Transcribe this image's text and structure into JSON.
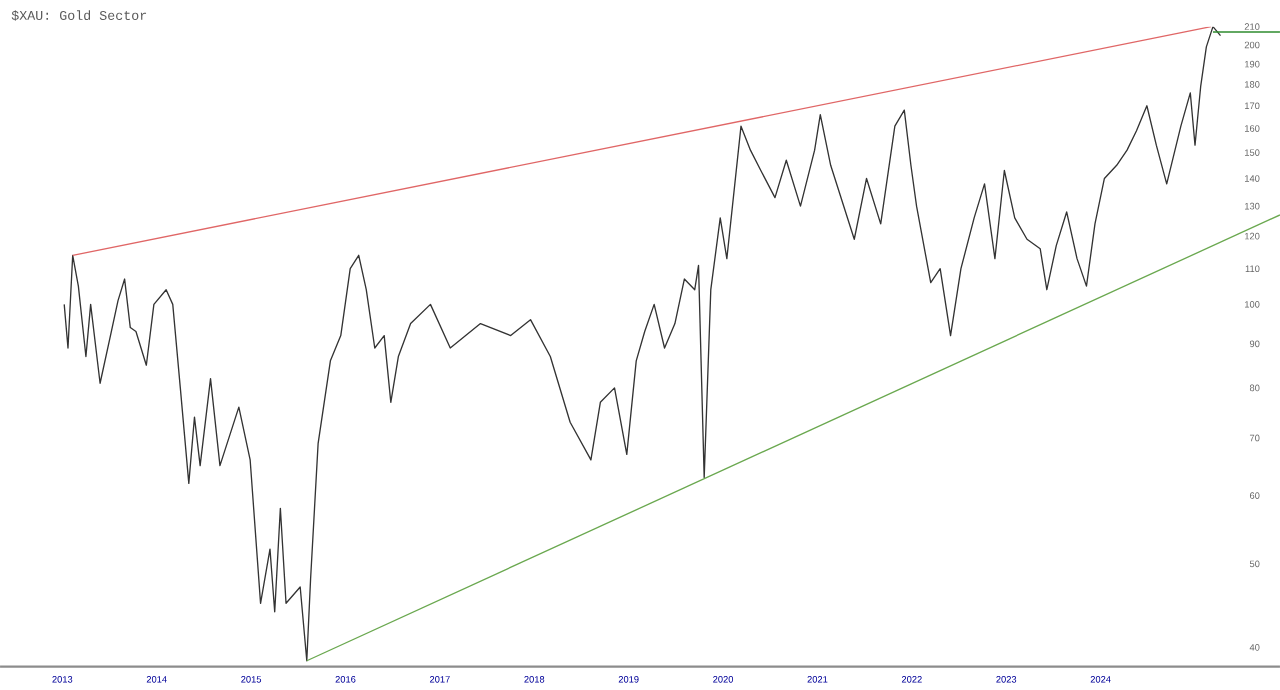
{
  "chart_data": {
    "type": "line",
    "title": "$XAU: Gold Sector",
    "xlim": [
      2012.84,
      2026.4
    ],
    "ylim": [
      38,
      210
    ],
    "log": "y",
    "xticks": [
      {
        "value": 2013.5,
        "label": "2013"
      },
      {
        "value": 2014.5,
        "label": "2014"
      },
      {
        "value": 2015.5,
        "label": "2015"
      },
      {
        "value": 2016.5,
        "label": "2016"
      },
      {
        "value": 2017.5,
        "label": "2017"
      },
      {
        "value": 2018.5,
        "label": "2018"
      },
      {
        "value": 2019.5,
        "label": "2019"
      },
      {
        "value": 2020.5,
        "label": "2020"
      },
      {
        "value": 2021.5,
        "label": "2021"
      },
      {
        "value": 2022.5,
        "label": "2022"
      },
      {
        "value": 2023.5,
        "label": "2023"
      },
      {
        "value": 2024.5,
        "label": "2024"
      }
    ],
    "yticks": [
      40,
      50,
      60,
      70,
      80,
      90,
      100,
      110,
      120,
      130,
      140,
      150,
      160,
      170,
      180,
      190,
      200,
      210
    ],
    "series": [
      {
        "color": "#333333",
        "x": [
          2013.52,
          2013.56,
          2013.61,
          2013.67,
          2013.75,
          2013.8,
          2013.9,
          2014.01,
          2014.09,
          2014.16,
          2014.22,
          2014.28,
          2014.39,
          2014.47,
          2014.6,
          2014.67,
          2014.75,
          2014.84,
          2014.9,
          2014.96,
          2015.07,
          2015.17,
          2015.37,
          2015.49,
          2015.6,
          2015.7,
          2015.75,
          2015.81,
          2015.87,
          2016.02,
          2016.09,
          2016.13,
          2016.21,
          2016.34,
          2016.45,
          2016.55,
          2016.64,
          2016.72,
          2016.81,
          2016.91,
          2016.98,
          2017.06,
          2017.19,
          2017.4,
          2017.61,
          2017.93,
          2018.25,
          2018.46,
          2018.67,
          2018.88,
          2019.1,
          2019.2,
          2019.35,
          2019.48,
          2019.58,
          2019.67,
          2019.77,
          2019.88,
          2019.99,
          2020.09,
          2020.2,
          2020.24,
          2020.3,
          2020.37,
          2020.47,
          2020.54,
          2020.69,
          2020.79,
          2020.9,
          2021.05,
          2021.17,
          2021.32,
          2021.47,
          2021.53,
          2021.64,
          2021.89,
          2022.02,
          2022.17,
          2022.32,
          2022.42,
          2022.49,
          2022.55,
          2022.7,
          2022.8,
          2022.91,
          2023.02,
          2023.16,
          2023.27,
          2023.38,
          2023.48,
          2023.59,
          2023.72,
          2023.86,
          2023.93,
          2024.03,
          2024.14,
          2024.25,
          2024.35,
          2024.44,
          2024.54,
          2024.67,
          2024.78,
          2024.88,
          2024.99,
          2025.09,
          2025.2,
          2025.35,
          2025.45,
          2025.5,
          2025.56,
          2025.62,
          2025.69,
          2025.77
        ],
        "values": [
          100,
          89,
          114,
          105,
          87,
          100,
          81,
          92,
          101,
          107,
          94,
          93,
          85,
          100,
          104,
          100,
          80,
          62,
          74,
          65,
          82,
          65,
          76,
          66,
          45,
          52,
          44,
          58,
          45,
          47,
          38.6,
          48,
          69,
          86,
          92,
          110,
          114,
          104,
          89,
          92,
          77,
          87,
          95,
          100,
          89,
          95,
          92,
          96,
          87,
          73,
          66,
          77,
          80,
          67,
          86,
          93,
          100,
          89,
          95,
          107,
          104,
          111,
          63,
          104,
          126,
          113,
          161,
          151,
          143,
          133,
          147,
          130,
          151,
          166,
          145,
          119,
          140,
          124,
          161,
          168,
          145,
          130,
          106,
          110,
          92,
          110,
          126,
          138,
          113,
          143,
          126,
          119,
          116,
          104,
          117,
          128,
          113,
          105,
          124,
          140,
          145,
          151,
          159,
          170,
          153,
          138,
          161,
          176,
          153,
          179,
          199,
          210,
          205
        ]
      },
      {
        "color": "#e06666",
        "x": [
          2013.61,
          2025.67
        ],
        "values": [
          114,
          210
        ]
      },
      {
        "color": "#6aa84f",
        "x": [
          2016.09,
          2026.4
        ],
        "values": [
          38.6,
          127
        ]
      },
      {
        "color": "#2e8b2e",
        "x": [
          2025.69,
          2026.4
        ],
        "values": [
          207,
          207
        ]
      }
    ]
  }
}
